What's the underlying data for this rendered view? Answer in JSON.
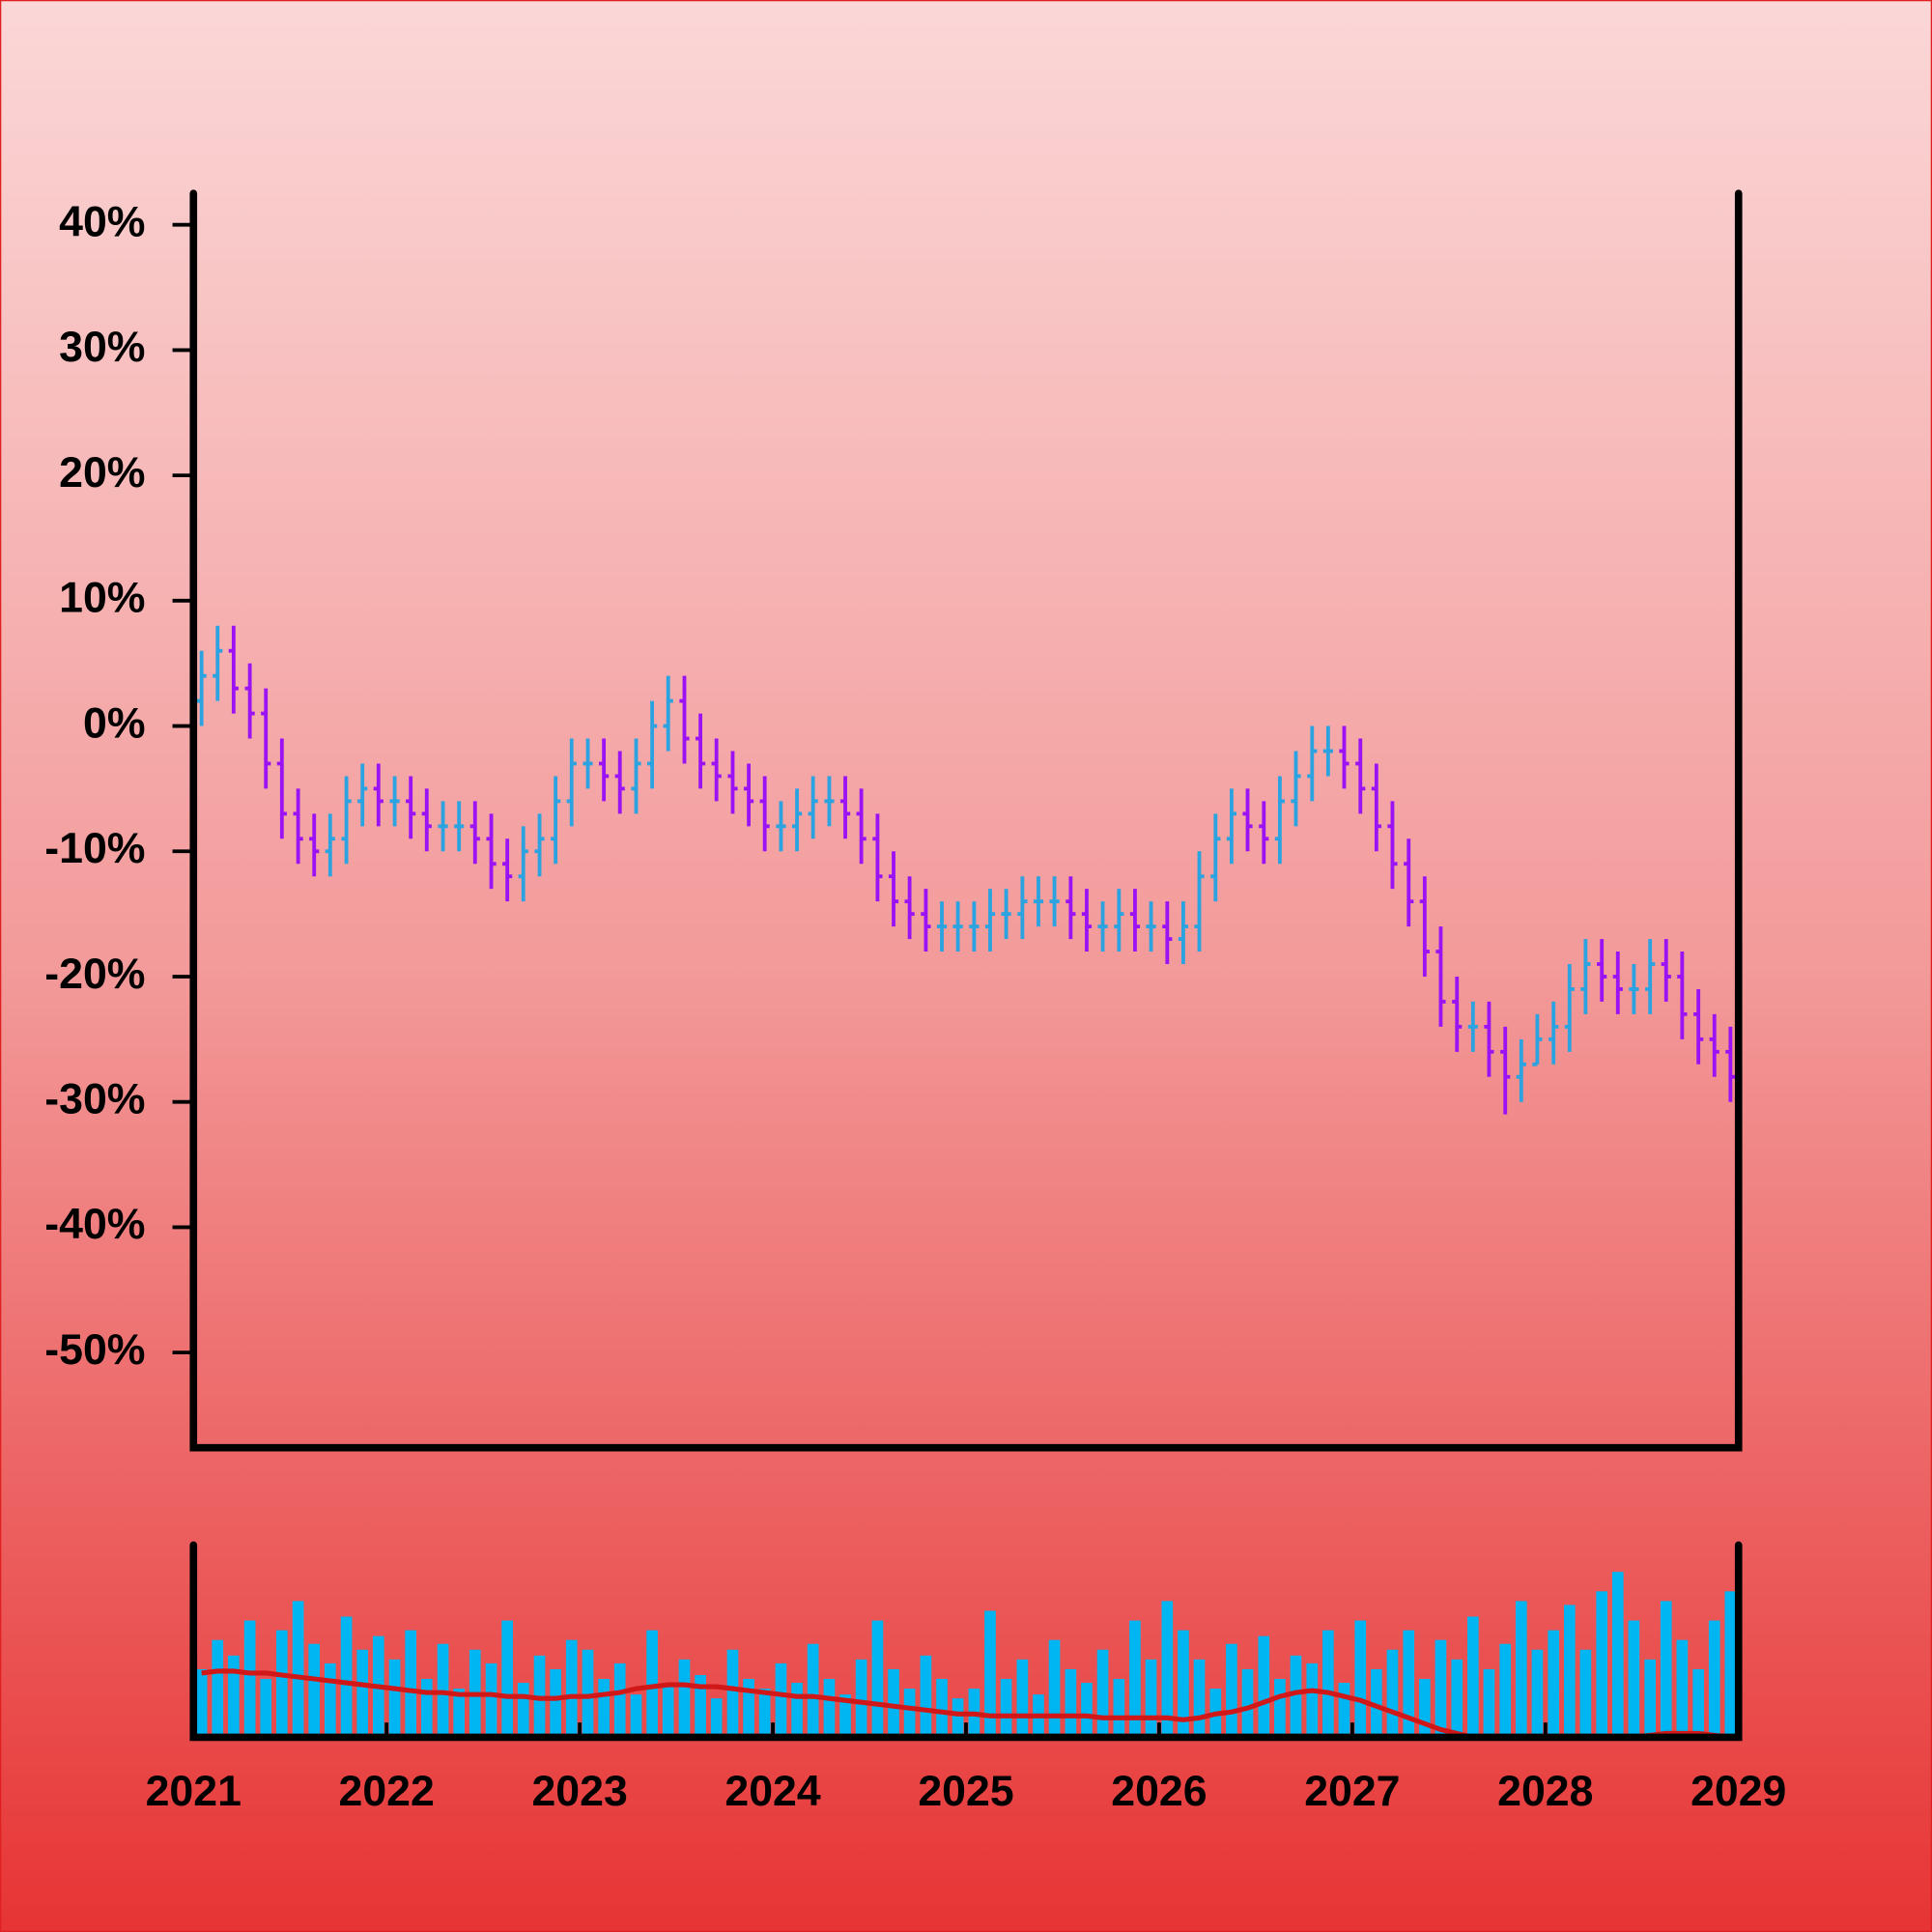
{
  "chart_data": [
    {
      "type": "ohlc",
      "x": [
        2021.042,
        2021.125,
        2021.208,
        2021.292,
        2021.375,
        2021.458,
        2021.542,
        2021.625,
        2021.708,
        2021.792,
        2021.875,
        2021.958,
        2022.042,
        2022.125,
        2022.208,
        2022.292,
        2022.375,
        2022.458,
        2022.542,
        2022.625,
        2022.708,
        2022.792,
        2022.875,
        2022.958,
        2023.042,
        2023.125,
        2023.208,
        2023.292,
        2023.375,
        2023.458,
        2023.542,
        2023.625,
        2023.708,
        2023.792,
        2023.875,
        2023.958,
        2024.042,
        2024.125,
        2024.208,
        2024.292,
        2024.375,
        2024.458,
        2024.542,
        2024.625,
        2024.708,
        2024.792,
        2024.875,
        2024.958,
        2025.042,
        2025.125,
        2025.208,
        2025.292,
        2025.375,
        2025.458,
        2025.542,
        2025.625,
        2025.708,
        2025.792,
        2025.875,
        2025.958,
        2026.042,
        2026.125,
        2026.208,
        2026.292,
        2026.375,
        2026.458,
        2026.542,
        2026.625,
        2026.708,
        2026.792,
        2026.875,
        2026.958,
        2027.042,
        2027.125,
        2027.208,
        2027.292,
        2027.375,
        2027.458,
        2027.542,
        2027.625,
        2027.708,
        2027.792,
        2027.875,
        2027.958,
        2028.042,
        2028.125,
        2028.208,
        2028.292,
        2028.375,
        2028.458,
        2028.542,
        2028.625,
        2028.708,
        2028.792,
        2028.875,
        2028.958
      ],
      "open": [
        2,
        4,
        6,
        3,
        1,
        -3,
        -7,
        -9,
        -10,
        -9,
        -6,
        -5,
        -6,
        -6,
        -7,
        -8,
        -8,
        -8,
        -9,
        -11,
        -12,
        -10,
        -9,
        -6,
        -3,
        -3,
        -4,
        -5,
        -3,
        0,
        2,
        -1,
        -3,
        -4,
        -5,
        -6,
        -8,
        -8,
        -7,
        -6,
        -6,
        -7,
        -9,
        -12,
        -14,
        -15,
        -16,
        -16,
        -16,
        -16,
        -15,
        -15,
        -14,
        -14,
        -14,
        -15,
        -16,
        -16,
        -15,
        -16,
        -16,
        -17,
        -16,
        -12,
        -9,
        -7,
        -8,
        -9,
        -6,
        -4,
        -2,
        -2,
        -3,
        -5,
        -8,
        -11,
        -14,
        -18,
        -22,
        -24,
        -24,
        -26,
        -28,
        -27,
        -25,
        -24,
        -21,
        -19,
        -20,
        -21,
        -21,
        -19,
        -20,
        -23,
        -25,
        -26
      ],
      "high": [
        6,
        8,
        8,
        5,
        3,
        -1,
        -5,
        -7,
        -7,
        -4,
        -3,
        -3,
        -4,
        -4,
        -5,
        -6,
        -6,
        -6,
        -7,
        -9,
        -8,
        -7,
        -4,
        -1,
        -1,
        -1,
        -2,
        -1,
        2,
        4,
        4,
        1,
        -1,
        -2,
        -3,
        -4,
        -6,
        -5,
        -4,
        -4,
        -4,
        -5,
        -7,
        -10,
        -12,
        -13,
        -14,
        -14,
        -14,
        -13,
        -13,
        -12,
        -12,
        -12,
        -12,
        -13,
        -14,
        -13,
        -13,
        -14,
        -14,
        -14,
        -10,
        -7,
        -5,
        -5,
        -6,
        -4,
        -2,
        0,
        0,
        0,
        -1,
        -3,
        -6,
        -9,
        -12,
        -16,
        -20,
        -22,
        -22,
        -24,
        -25,
        -23,
        -22,
        -19,
        -17,
        -17,
        -18,
        -19,
        -17,
        -17,
        -18,
        -21,
        -23,
        -24
      ],
      "low": [
        0,
        2,
        1,
        -1,
        -5,
        -9,
        -11,
        -12,
        -12,
        -11,
        -8,
        -8,
        -8,
        -9,
        -10,
        -10,
        -10,
        -11,
        -13,
        -14,
        -14,
        -12,
        -11,
        -8,
        -5,
        -6,
        -7,
        -7,
        -5,
        -2,
        -3,
        -5,
        -6,
        -7,
        -8,
        -10,
        -10,
        -10,
        -9,
        -8,
        -9,
        -11,
        -14,
        -16,
        -17,
        -18,
        -18,
        -18,
        -18,
        -18,
        -17,
        -17,
        -16,
        -16,
        -17,
        -18,
        -18,
        -18,
        -18,
        -18,
        -19,
        -19,
        -18,
        -14,
        -11,
        -10,
        -11,
        -11,
        -8,
        -6,
        -4,
        -5,
        -7,
        -10,
        -13,
        -16,
        -20,
        -24,
        -26,
        -26,
        -28,
        -31,
        -30,
        -27,
        -27,
        -26,
        -23,
        -22,
        -23,
        -23,
        -23,
        -22,
        -25,
        -27,
        -28,
        -30
      ],
      "close": [
        4,
        6,
        3,
        1,
        -3,
        -7,
        -9,
        -10,
        -9,
        -6,
        -5,
        -6,
        -6,
        -7,
        -8,
        -8,
        -8,
        -9,
        -11,
        -12,
        -10,
        -9,
        -6,
        -3,
        -3,
        -4,
        -5,
        -3,
        0,
        2,
        -1,
        -3,
        -4,
        -5,
        -6,
        -8,
        -8,
        -7,
        -6,
        -6,
        -7,
        -9,
        -12,
        -14,
        -15,
        -16,
        -16,
        -16,
        -16,
        -15,
        -15,
        -14,
        -14,
        -14,
        -15,
        -16,
        -16,
        -15,
        -16,
        -16,
        -17,
        -16,
        -12,
        -9,
        -7,
        -8,
        -9,
        -6,
        -4,
        -2,
        -2,
        -3,
        -5,
        -8,
        -11,
        -14,
        -18,
        -22,
        -24,
        -24,
        -26,
        -28,
        -27,
        -25,
        -24,
        -21,
        -19,
        -20,
        -21,
        -21,
        -19,
        -20,
        -23,
        -25,
        -26,
        -28
      ],
      "up_color": "#2aa3e0",
      "down_color": "#9b12f5",
      "xlim": [
        2021,
        2029
      ],
      "ylim": [
        -57.6,
        42.5
      ],
      "yticks": [
        {
          "value": 40,
          "label": "40%"
        },
        {
          "value": 30,
          "label": "30%"
        },
        {
          "value": 20,
          "label": "20%"
        },
        {
          "value": 10,
          "label": "10%"
        },
        {
          "value": 0,
          "label": "0%"
        },
        {
          "value": -10,
          "label": "-10%"
        },
        {
          "value": -20,
          "label": "-20%"
        },
        {
          "value": -30,
          "label": "-30%"
        },
        {
          "value": -40,
          "label": "-40%"
        },
        {
          "value": -50,
          "label": "-50%"
        }
      ]
    },
    {
      "type": "bar",
      "values": [
        35,
        50,
        42,
        60,
        30,
        55,
        70,
        48,
        38,
        62,
        45,
        52,
        40,
        55,
        30,
        48,
        25,
        45,
        38,
        60,
        28,
        42,
        35,
        50,
        45,
        30,
        38,
        22,
        55,
        28,
        40,
        32,
        20,
        45,
        30,
        25,
        38,
        28,
        48,
        30,
        22,
        40,
        60,
        35,
        25,
        42,
        30,
        20,
        25,
        65,
        30,
        40,
        22,
        50,
        35,
        28,
        45,
        30,
        60,
        40,
        70,
        55,
        40,
        25,
        48,
        35,
        52,
        30,
        42,
        38,
        55,
        28,
        60,
        35,
        45,
        55,
        30,
        50,
        40,
        62,
        35,
        48,
        70,
        45,
        55,
        68,
        45,
        75,
        85,
        60,
        40,
        70,
        50,
        35,
        60,
        75
      ],
      "color": "#00b6f2",
      "overlay": {
        "type": "line",
        "color": "#d01818",
        "values": [
          33,
          34,
          34,
          33,
          33,
          32,
          31,
          30,
          29,
          28,
          27,
          26,
          25,
          24,
          23,
          23,
          22,
          22,
          22,
          21,
          21,
          20,
          20,
          21,
          21,
          22,
          23,
          25,
          26,
          27,
          27,
          26,
          26,
          25,
          24,
          23,
          22,
          21,
          21,
          20,
          19,
          18,
          17,
          16,
          15,
          14,
          13,
          12,
          12,
          11,
          11,
          11,
          11,
          11,
          11,
          11,
          10,
          10,
          10,
          10,
          10,
          9,
          10,
          12,
          13,
          15,
          18,
          21,
          23,
          24,
          23,
          21,
          19,
          16,
          13,
          10,
          7,
          4,
          2,
          0,
          0,
          0,
          0,
          0,
          0,
          0,
          0,
          0,
          0,
          0,
          1,
          2,
          2,
          2,
          1,
          0
        ]
      },
      "xlim": [
        2021,
        2029
      ],
      "ylim": [
        0,
        100
      ],
      "xticks": [
        2021,
        2022,
        2023,
        2024,
        2025,
        2026,
        2027,
        2028,
        2029
      ]
    }
  ]
}
